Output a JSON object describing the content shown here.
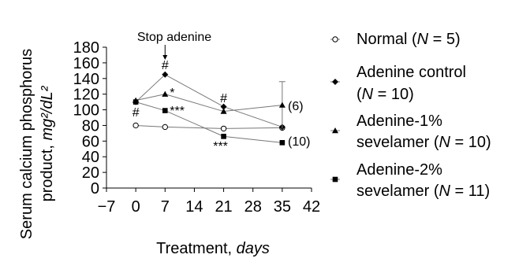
{
  "chart_data": {
    "type": "line",
    "xlabel_main": "Treatment, ",
    "xlabel_unit": "days",
    "ylabel_line1": "Serum calcium phosphorus",
    "ylabel_line2_prefix": "product, ",
    "ylabel_line2_unit": "mg²/dL²",
    "xlim": [
      -7,
      42
    ],
    "ylim": [
      0,
      180
    ],
    "xticks": [
      "−7",
      "0",
      "7",
      "14",
      "21",
      "28",
      "35",
      "42"
    ],
    "xtick_values": [
      -7,
      0,
      7,
      14,
      21,
      28,
      35,
      42
    ],
    "yticks": [
      0,
      20,
      40,
      60,
      80,
      100,
      120,
      140,
      160,
      180
    ],
    "series": [
      {
        "name": "Normal",
        "n_label": "N = 5",
        "legend_line1": "Normal (",
        "legend_line2": "",
        "marker": "open-circle",
        "x": [
          0,
          7,
          21,
          35
        ],
        "y": [
          80,
          78,
          76,
          77
        ],
        "err": [
          0,
          0,
          0,
          0
        ]
      },
      {
        "name": "Adenine control",
        "n_label": "N = 10",
        "legend_line1": "Adenine control",
        "legend_line2": "(",
        "marker": "diamond",
        "x": [
          0,
          7,
          21,
          35
        ],
        "y": [
          110,
          145,
          104,
          78
        ],
        "err": [
          0,
          0,
          0,
          0
        ]
      },
      {
        "name": "Adenine-1% sevelamer",
        "n_label": "N = 10",
        "legend_line1": "Adenine-1%",
        "legend_line2": "sevelamer (",
        "marker": "triangle",
        "x": [
          0,
          7,
          21,
          35
        ],
        "y": [
          112,
          120,
          98,
          106
        ],
        "err": [
          0,
          0,
          0,
          30
        ]
      },
      {
        "name": "Adenine-2% sevelamer",
        "n_label": "N = 11",
        "legend_line1": "Adenine-2%",
        "legend_line2": "sevelamer (",
        "marker": "square",
        "x": [
          0,
          7,
          21,
          35
        ],
        "y": [
          110,
          99,
          66,
          58
        ],
        "err": [
          0,
          0,
          0,
          0
        ]
      }
    ],
    "annotations": {
      "stop": "Stop adenine",
      "hash": "#",
      "star1": "*",
      "star3": "***",
      "n6": "(6)",
      "n10": "(10)"
    }
  }
}
